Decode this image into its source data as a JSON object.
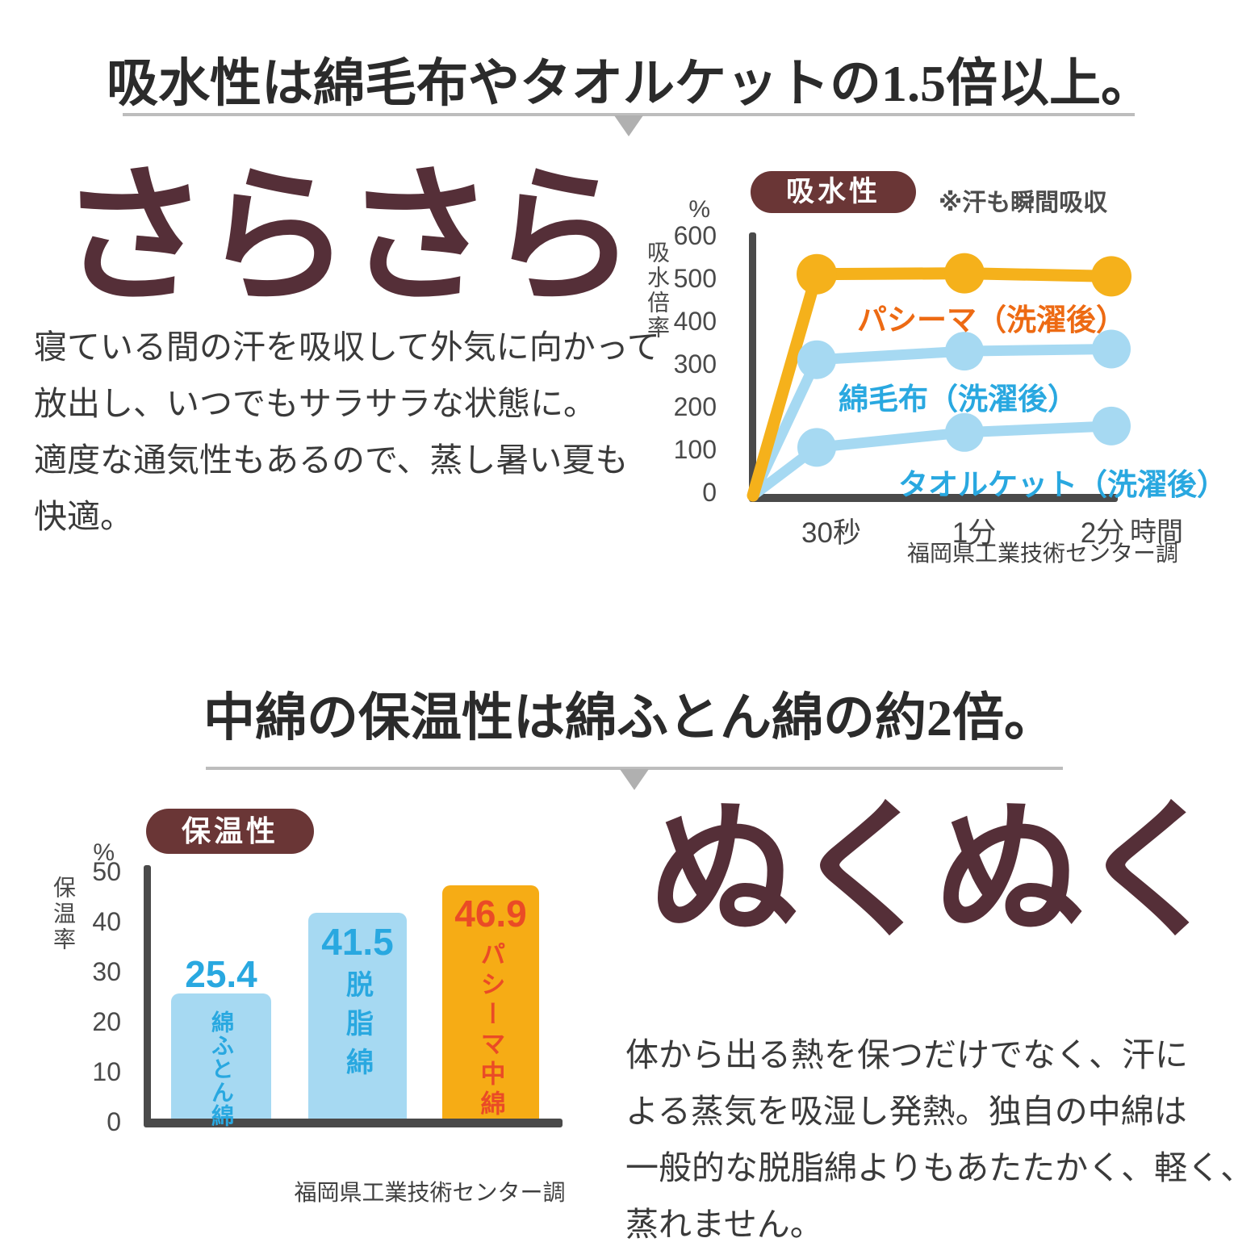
{
  "section1": {
    "title": "吸水性は綿毛布やタオルケットの1.5倍以上。",
    "headline": "さらさら",
    "body": "寝ている間の汗を吸収して外気に向かって\n放出し、いつでもサラサラな状態に。\n適度な通気性もあるので、蒸し暑い夏も\n快適。"
  },
  "section2": {
    "title": "中綿の保温性は綿ふとん綿の約2倍。",
    "headline": "ぬくぬく",
    "body": "体から出る熱を保つだけでなく、汗に\nよる蒸気を吸湿し発熱。独自の中綿は\n一般的な脱脂綿よりもあたたかく、軽く、\n蒸れません。"
  },
  "colors": {
    "headline_maroon": "#552f38",
    "badge_brown": "#6a3636",
    "gold": "#f5b11b",
    "light_blue": "#a6d9f2",
    "blue_text": "#29a8e0",
    "orange_red": "#ea4b26",
    "pasima_label_orange": "#ed6a13",
    "axis_gray": "#4a4a4a"
  },
  "chart_data": [
    {
      "type": "line",
      "badge": "吸水性",
      "note": "※汗も瞬間吸収",
      "unit": "%",
      "ylabel": "吸水倍率",
      "ylim": [
        0,
        600
      ],
      "yticks": [
        600,
        500,
        400,
        300,
        200,
        100,
        0
      ],
      "categories": [
        "30秒",
        "1分",
        "2分"
      ],
      "x_axis_suffix": "時間",
      "lines_start_at_origin": true,
      "series": [
        {
          "name": "パシーマ（洗濯後）",
          "values": [
            510,
            512,
            505
          ],
          "color": "#f5b11b",
          "label_color": "#ed6a13"
        },
        {
          "name": "綿毛布（洗濯後）",
          "values": [
            310,
            330,
            335
          ],
          "color": "#a6d9f2",
          "label_color": "#29a8e0"
        },
        {
          "name": "タオルケット（洗濯後）",
          "values": [
            105,
            140,
            155
          ],
          "color": "#a6d9f2",
          "label_color": "#29a8e0"
        }
      ],
      "source": "福岡県工業技術センター調"
    },
    {
      "type": "bar",
      "badge": "保温性",
      "unit": "%",
      "ylabel": "保温率",
      "ylim": [
        0,
        50
      ],
      "yticks": [
        50,
        40,
        30,
        20,
        10,
        0
      ],
      "bars": [
        {
          "label": "綿ふとん綿",
          "value": 25.4,
          "bar_color": "#a6d9f2",
          "text_color": "#29a8e0",
          "value_position": "above"
        },
        {
          "label": "脱脂綿",
          "value": 41.5,
          "bar_color": "#a6d9f2",
          "text_color": "#29a8e0",
          "value_position": "inside"
        },
        {
          "label": "パシーマ中綿",
          "value": 46.9,
          "bar_color": "#f6ac15",
          "text_color": "#ea4b26",
          "value_position": "inside"
        }
      ],
      "source": "福岡県工業技術センター調"
    }
  ]
}
